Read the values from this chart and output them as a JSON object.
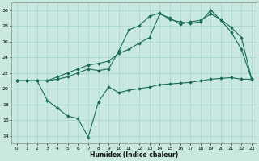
{
  "xlabel": "Humidex (Indice chaleur)",
  "background_color": "#c8e8e0",
  "grid_color": "#a8d8d0",
  "line_color": "#1a6b5a",
  "xlim": [
    -0.5,
    23.5
  ],
  "ylim": [
    13,
    31
  ],
  "yticks": [
    14,
    16,
    18,
    20,
    22,
    24,
    26,
    28,
    30
  ],
  "xticks": [
    0,
    1,
    2,
    3,
    4,
    5,
    6,
    7,
    8,
    9,
    10,
    11,
    12,
    13,
    14,
    15,
    16,
    17,
    18,
    19,
    20,
    21,
    22,
    23
  ],
  "line1_x": [
    0,
    1,
    2,
    3,
    4,
    5,
    6,
    7,
    8,
    9,
    10,
    11,
    12,
    13,
    14,
    15,
    16,
    17,
    18,
    19,
    20,
    21,
    22,
    23
  ],
  "line1_y": [
    21.0,
    21.0,
    21.0,
    18.5,
    17.5,
    16.5,
    16.2,
    13.8,
    18.3,
    20.2,
    19.5,
    19.8,
    20.0,
    20.2,
    20.5,
    20.6,
    20.7,
    20.8,
    21.0,
    21.2,
    21.3,
    21.4,
    21.2,
    21.2
  ],
  "line2_x": [
    0,
    1,
    2,
    3,
    4,
    5,
    6,
    7,
    8,
    9,
    10,
    11,
    12,
    13,
    14,
    15,
    16,
    17,
    18,
    19,
    20,
    21,
    22,
    23
  ],
  "line2_y": [
    21.0,
    21.0,
    21.0,
    21.0,
    21.2,
    21.5,
    22.0,
    22.5,
    22.3,
    22.5,
    24.8,
    27.5,
    28.0,
    29.2,
    29.6,
    28.8,
    28.5,
    28.3,
    28.5,
    30.0,
    28.7,
    27.2,
    25.0,
    21.2
  ],
  "line3_x": [
    0,
    1,
    2,
    3,
    4,
    5,
    6,
    7,
    8,
    9,
    10,
    11,
    12,
    13,
    14,
    15,
    16,
    17,
    18,
    19,
    20,
    21,
    22,
    23
  ],
  "line3_y": [
    21.0,
    21.0,
    21.0,
    21.0,
    21.5,
    22.0,
    22.5,
    23.0,
    23.2,
    23.5,
    24.5,
    25.0,
    25.8,
    26.5,
    29.5,
    29.0,
    28.2,
    28.5,
    28.7,
    29.5,
    28.8,
    27.8,
    26.5,
    21.2
  ]
}
